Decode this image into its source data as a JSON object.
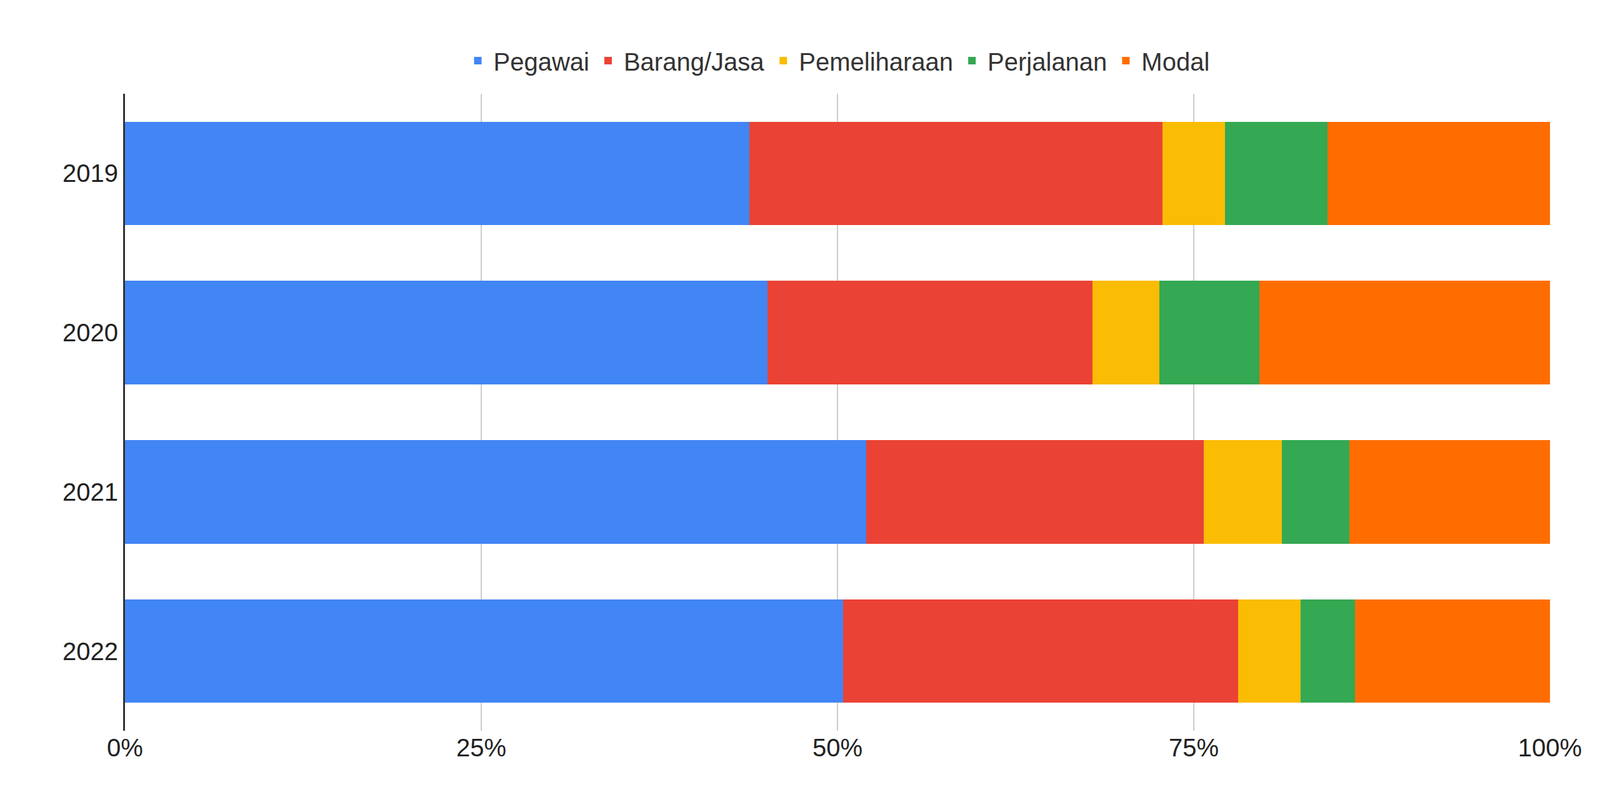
{
  "chart_data": {
    "type": "bar",
    "orientation": "horizontal",
    "stacked": true,
    "grid": true,
    "legend": "top",
    "categories": [
      "2019",
      "2020",
      "2021",
      "2022"
    ],
    "series": [
      {
        "name": "Pegawai",
        "color": "#4285F4",
        "values": [
          43.8,
          45.1,
          52.0,
          50.4
        ]
      },
      {
        "name": "Barang/Jasa",
        "color": "#EA4335",
        "values": [
          29.0,
          22.8,
          23.7,
          27.7
        ]
      },
      {
        "name": "Pemeliharaan",
        "color": "#FBBC04",
        "values": [
          4.4,
          4.7,
          5.5,
          4.4
        ]
      },
      {
        "name": "Perjalanan",
        "color": "#34A853",
        "values": [
          7.2,
          7.0,
          4.7,
          3.8
        ]
      },
      {
        "name": "Modal",
        "color": "#FF6D01",
        "values": [
          15.6,
          20.4,
          14.1,
          13.7
        ]
      }
    ],
    "xlim": [
      0,
      100
    ],
    "xticks": [
      {
        "value": 0,
        "label": "0%"
      },
      {
        "value": 25,
        "label": "25%"
      },
      {
        "value": 50,
        "label": "50%"
      },
      {
        "value": 75,
        "label": "75%"
      },
      {
        "value": 100,
        "label": "100%"
      }
    ]
  }
}
